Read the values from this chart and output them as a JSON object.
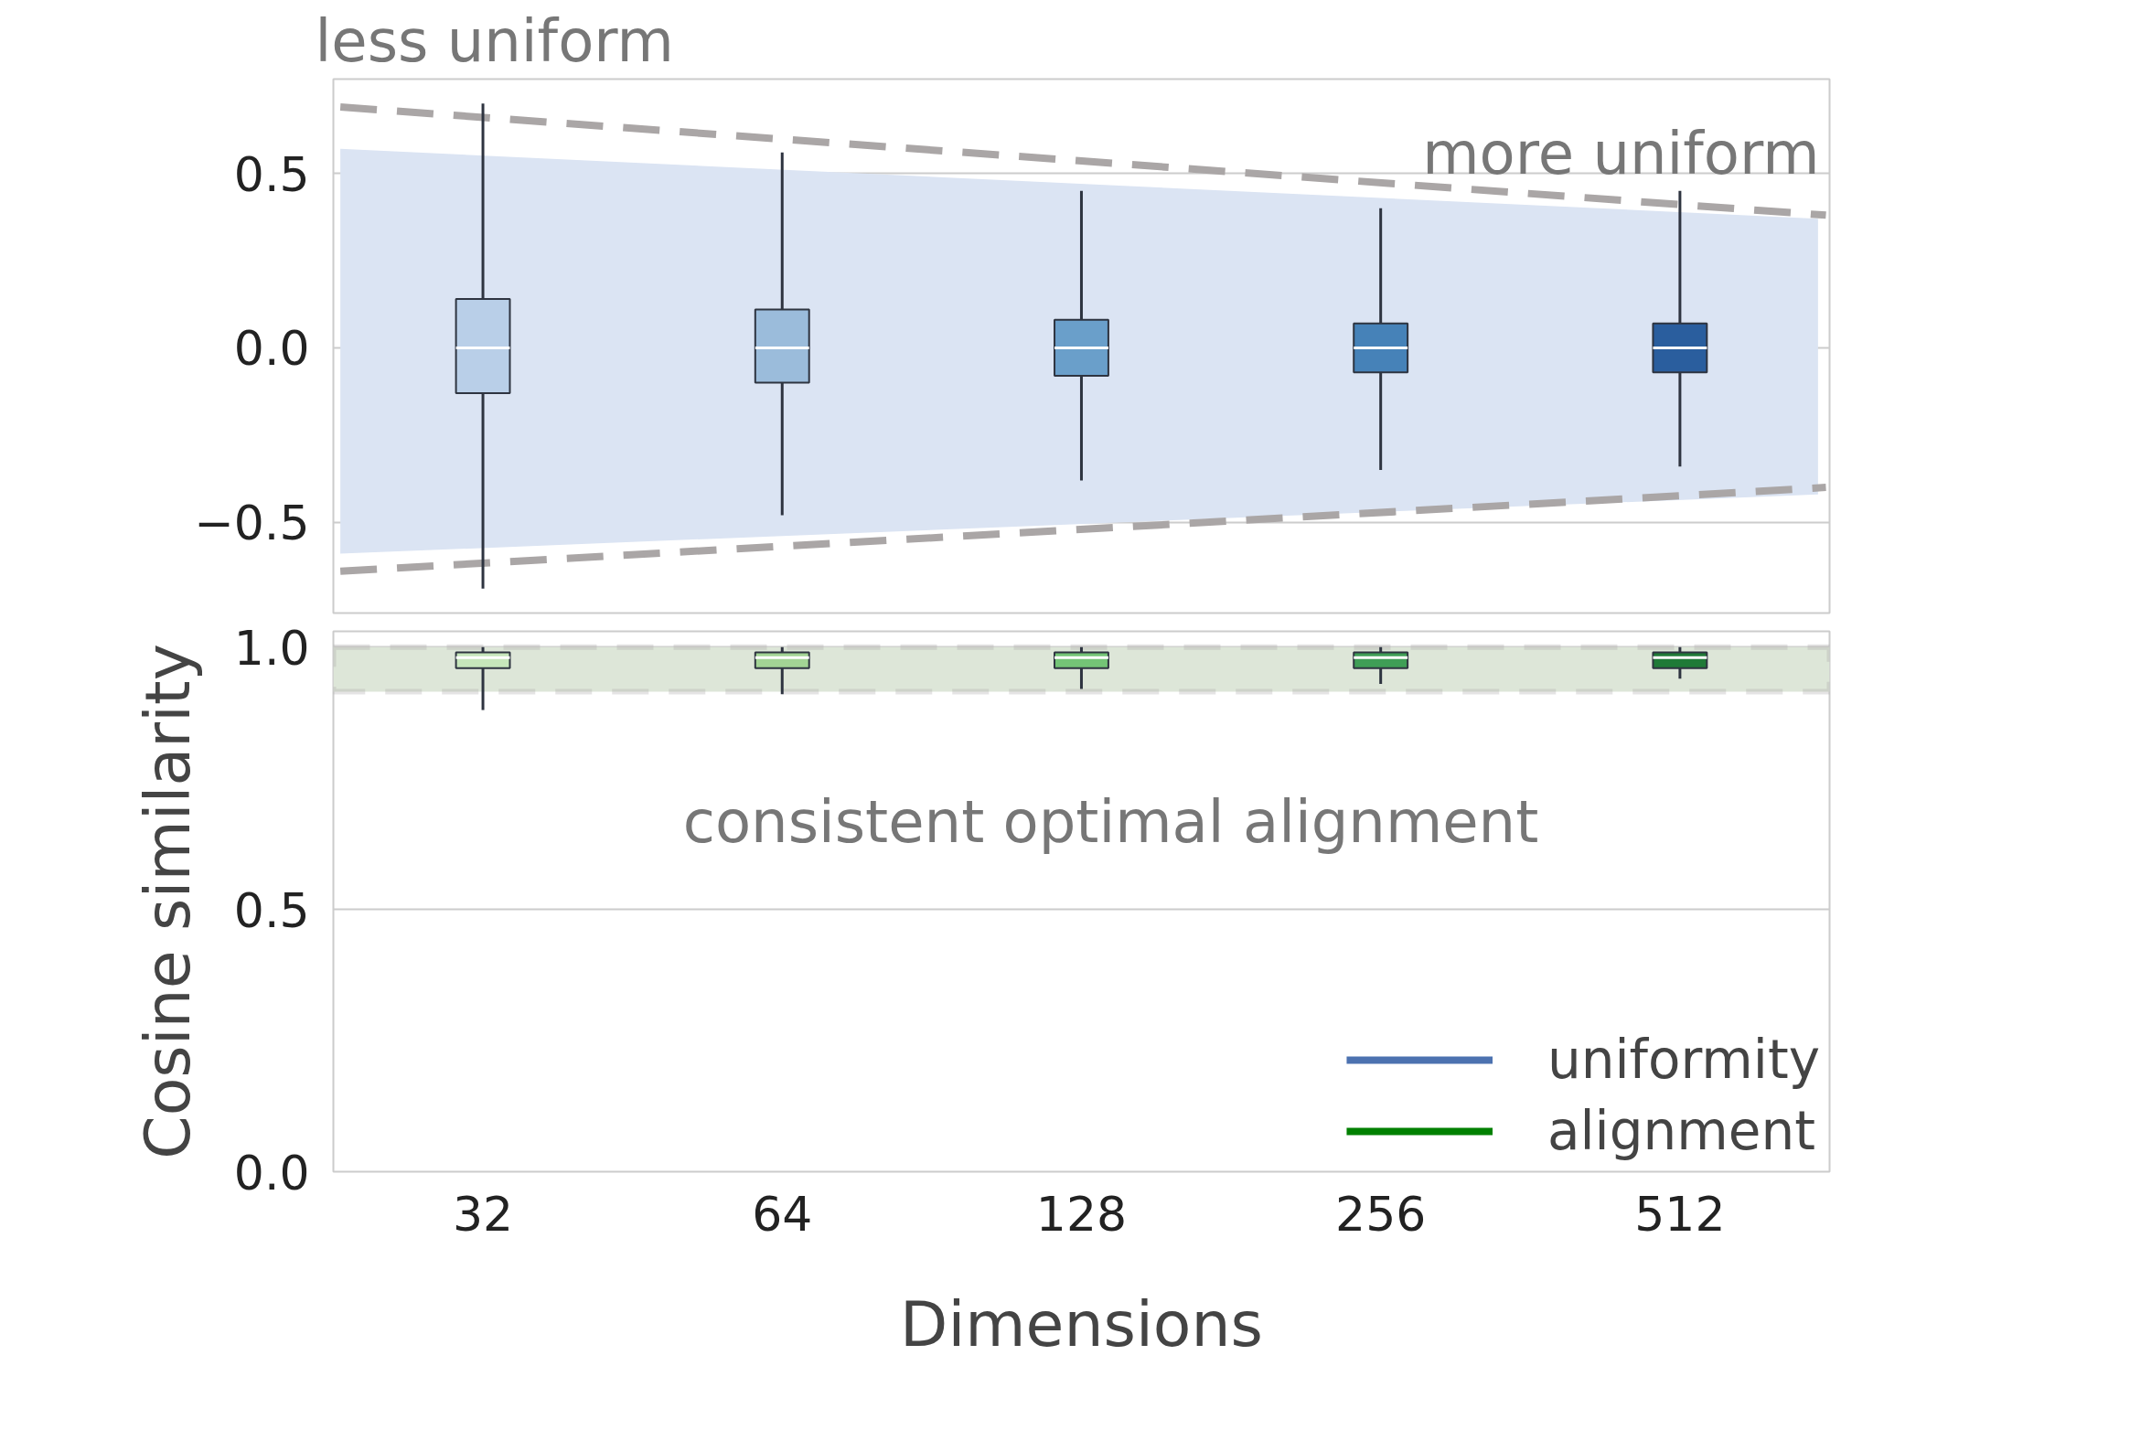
{
  "chart_data": [
    {
      "type": "box",
      "x": [
        32,
        64,
        128,
        256,
        512
      ],
      "log": "x",
      "xlim": [
        22.63,
        724.08
      ],
      "xticks": [
        32,
        64,
        128,
        256,
        512
      ],
      "ylim": [
        -0.76,
        0.77
      ],
      "yticks": [
        {
          "value": -0.5,
          "label": "−0.5"
        },
        {
          "value": 0,
          "label": "0.0"
        },
        {
          "value": 0.5,
          "label": "0.5"
        }
      ],
      "grid": "y",
      "tick_labels": "y",
      "annotations": [
        "less uniform",
        "more uniform"
      ],
      "series": [
        {
          "type": "line",
          "x": [
            23,
            705
          ],
          "values": [
            null,
            null
          ],
          "lower": [
            -0.59,
            -0.42
          ],
          "upper": [
            0.57,
            0.37
          ],
          "color": "#dbe4f3"
        },
        {
          "type": "line",
          "x": [
            23,
            718
          ],
          "values": [
            0.69,
            0.38
          ],
          "color": "#aaa6a6",
          "line_style": "dashed"
        },
        {
          "type": "line",
          "x": [
            23,
            718
          ],
          "values": [
            -0.64,
            -0.4
          ],
          "color": "#aaa6a6",
          "line_style": "dashed"
        },
        {
          "name": "uniformity",
          "color": "#4c72b0",
          "colors": [
            "#b9cfe8",
            "#9bbcdb",
            "#6a9fca",
            "#4682b8",
            "#2a5e9e"
          ],
          "boxes": [
            {
              "low": -0.69,
              "q1": -0.13,
              "median": 0,
              "q3": 0.14,
              "high": 0.7
            },
            {
              "low": -0.48,
              "q1": -0.1,
              "median": 0,
              "q3": 0.11,
              "high": 0.56
            },
            {
              "low": -0.38,
              "q1": -0.08,
              "median": 0,
              "q3": 0.08,
              "high": 0.45
            },
            {
              "low": -0.35,
              "q1": -0.07,
              "median": 0,
              "q3": 0.07,
              "high": 0.4
            },
            {
              "low": -0.34,
              "q1": -0.07,
              "median": 0,
              "q3": 0.07,
              "high": 0.45
            }
          ]
        }
      ]
    },
    {
      "type": "box",
      "x": [
        32,
        64,
        128,
        256,
        512
      ],
      "log": "x",
      "xlim": [
        22.63,
        724.08
      ],
      "xticks": [
        32,
        64,
        128,
        256,
        512
      ],
      "ylim": [
        0,
        1.03
      ],
      "yticks": [
        {
          "value": 0,
          "label": "0.0"
        },
        {
          "value": 0.5,
          "label": "0.5"
        },
        {
          "value": 1,
          "label": "1.0"
        }
      ],
      "grid": "y",
      "xlabel": "Dimensions",
      "ylabel": "Cosine similarity",
      "legend": "bottom right",
      "annotations": [
        "consistent optimal alignment"
      ],
      "bands": [
        {
          "axis": "y",
          "from": 0.915,
          "to": 1.0,
          "color": "#dde6d8"
        }
      ],
      "series": [
        {
          "name": "alignment",
          "color": "#008000",
          "colors": [
            "#c6e6bb",
            "#a3d495",
            "#74c476",
            "#3f9e56",
            "#1f7a37"
          ],
          "boxes": [
            {
              "low": 0.88,
              "q1": 0.96,
              "median": 0.98,
              "q3": 0.99,
              "high": 1.0
            },
            {
              "low": 0.91,
              "q1": 0.96,
              "median": 0.98,
              "q3": 0.99,
              "high": 1.0
            },
            {
              "low": 0.92,
              "q1": 0.96,
              "median": 0.98,
              "q3": 0.99,
              "high": 1.0
            },
            {
              "low": 0.93,
              "q1": 0.96,
              "median": 0.98,
              "q3": 0.99,
              "high": 1.0
            },
            {
              "low": 0.94,
              "q1": 0.96,
              "median": 0.98,
              "q3": 0.99,
              "high": 1.0
            }
          ]
        }
      ]
    }
  ]
}
